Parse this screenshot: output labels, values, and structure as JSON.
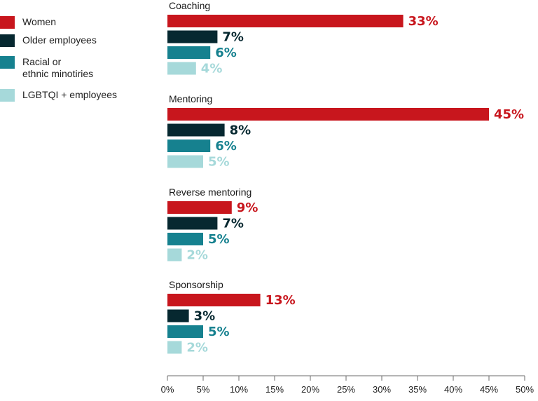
{
  "chart_data": {
    "type": "bar",
    "orientation": "horizontal",
    "categories": [
      "Coaching",
      "Mentoring",
      "Reverse mentoring",
      "Sponsorship"
    ],
    "series": [
      {
        "name": "Women",
        "color": "#c8161d",
        "values": [
          33,
          45,
          9,
          13
        ],
        "labels": [
          "33%",
          "45%",
          "9%",
          "13%"
        ]
      },
      {
        "name": "Older employees",
        "color": "#062830",
        "values": [
          7,
          8,
          7,
          3
        ],
        "labels": [
          "7%",
          "8%",
          "7%",
          "3%"
        ]
      },
      {
        "name": "Racial or ethnic minotiries",
        "name_lines": [
          "Racial or",
          "ethnic minotiries"
        ],
        "color": "#16818f",
        "values": [
          6,
          6,
          5,
          5
        ],
        "labels": [
          "6%",
          "6%",
          "5%",
          "5%"
        ]
      },
      {
        "name": "LGBTQI + employees",
        "color": "#a6d9da",
        "values": [
          4,
          5,
          2,
          2
        ],
        "labels": [
          "4%",
          "5%",
          "2%",
          "2%"
        ]
      }
    ],
    "xlim": [
      0,
      50
    ],
    "x_ticks": [
      "0%",
      "5%",
      "10%",
      "15%",
      "20%",
      "25%",
      "30%",
      "35%",
      "40%",
      "45%",
      "50%"
    ],
    "grid": false,
    "legend_position": "top-left"
  }
}
